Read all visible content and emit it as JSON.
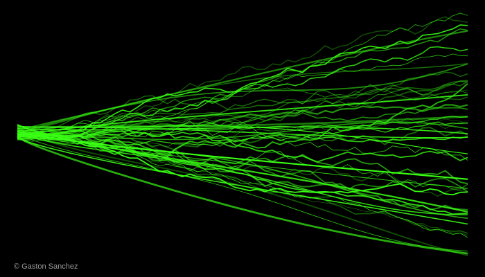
{
  "artwork": {
    "credit": "© Gaston Sanchez",
    "line_color": "#39ff14",
    "background": "#000000"
  }
}
